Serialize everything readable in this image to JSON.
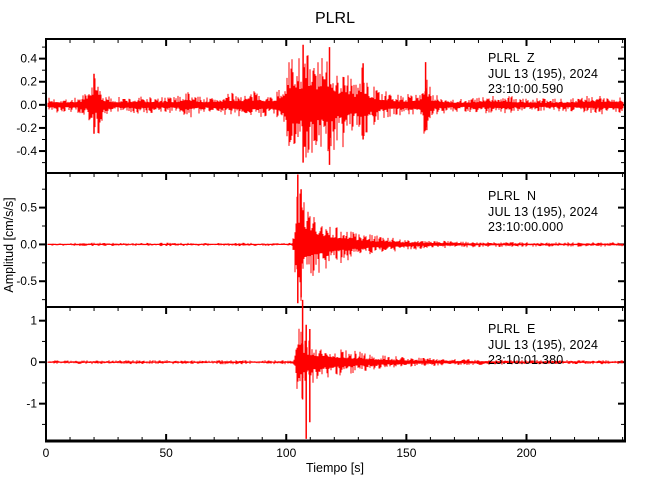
{
  "title": "PLRL",
  "chart_data": {
    "type": "line",
    "subtype": "seismogram-3-component",
    "title": "PLRL",
    "xlabel": "Tiempo [s]",
    "ylabel": "Amplitud [cm/s/s]",
    "trace_color": "#ff0000",
    "axis_color": "#000000",
    "background": "#ffffff",
    "grid": false,
    "x": {
      "lim": [
        0,
        241
      ],
      "major_ticks": [
        0,
        50,
        100,
        150,
        200
      ],
      "tick_labels": [
        "0",
        "50",
        "100",
        "150",
        "200"
      ],
      "minor_step": 10
    },
    "panels": [
      {
        "name": "PLRL-Z",
        "station": "PLRL",
        "component": "Z",
        "label_lines": [
          "PLRL  Z",
          "JUL 13 (195), 2024",
          "23:10:00.590"
        ],
        "ylim": [
          -0.59,
          0.57
        ],
        "major_ticks": [
          0.4,
          0.2,
          0.0,
          -0.2,
          -0.4
        ],
        "tick_labels": [
          "0.4",
          "0.2",
          "0.0",
          "-0.2",
          "-0.4"
        ],
        "minor_step": 0.1,
        "noise_seed": 7,
        "envelope": [
          [
            0,
            0.06
          ],
          [
            4,
            0.07
          ],
          [
            8,
            0.06
          ],
          [
            12,
            0.07
          ],
          [
            16,
            0.09
          ],
          [
            18,
            0.14
          ],
          [
            19,
            0.22
          ],
          [
            20,
            0.27
          ],
          [
            21,
            0.22
          ],
          [
            22,
            0.26
          ],
          [
            23,
            0.15
          ],
          [
            25,
            0.08
          ],
          [
            30,
            0.07
          ],
          [
            35,
            0.07
          ],
          [
            40,
            0.08
          ],
          [
            45,
            0.07
          ],
          [
            50,
            0.07
          ],
          [
            55,
            0.08
          ],
          [
            57,
            0.12
          ],
          [
            59,
            0.13
          ],
          [
            61,
            0.1
          ],
          [
            64,
            0.08
          ],
          [
            68,
            0.07
          ],
          [
            72,
            0.08
          ],
          [
            76,
            0.1
          ],
          [
            80,
            0.11
          ],
          [
            84,
            0.1
          ],
          [
            88,
            0.13
          ],
          [
            90,
            0.11
          ],
          [
            93,
            0.09
          ],
          [
            96,
            0.12
          ],
          [
            98,
            0.2
          ],
          [
            100,
            0.32
          ],
          [
            102,
            0.42
          ],
          [
            104,
            0.5
          ],
          [
            106,
            0.45
          ],
          [
            108,
            0.52
          ],
          [
            110,
            0.42
          ],
          [
            112,
            0.48
          ],
          [
            114,
            0.38
          ],
          [
            116,
            0.45
          ],
          [
            118,
            0.52
          ],
          [
            120,
            0.4
          ],
          [
            122,
            0.3
          ],
          [
            124,
            0.42
          ],
          [
            126,
            0.28
          ],
          [
            128,
            0.22
          ],
          [
            130,
            0.25
          ],
          [
            132,
            0.38
          ],
          [
            134,
            0.22
          ],
          [
            136,
            0.18
          ],
          [
            138,
            0.15
          ],
          [
            140,
            0.13
          ],
          [
            143,
            0.11
          ],
          [
            146,
            0.1
          ],
          [
            150,
            0.09
          ],
          [
            153,
            0.11
          ],
          [
            156,
            0.13
          ],
          [
            158,
            0.36
          ],
          [
            159,
            0.2
          ],
          [
            161,
            0.1
          ],
          [
            165,
            0.08
          ],
          [
            170,
            0.06
          ],
          [
            175,
            0.06
          ],
          [
            180,
            0.07
          ],
          [
            185,
            0.08
          ],
          [
            190,
            0.09
          ],
          [
            195,
            0.07
          ],
          [
            200,
            0.06
          ],
          [
            205,
            0.06
          ],
          [
            210,
            0.05
          ],
          [
            215,
            0.06
          ],
          [
            220,
            0.07
          ],
          [
            225,
            0.08
          ],
          [
            230,
            0.08
          ],
          [
            235,
            0.09
          ],
          [
            238,
            0.08
          ],
          [
            241,
            0.07
          ]
        ],
        "spikes": [
          [
            20,
            0.27,
            -0.25
          ],
          [
            107,
            0.52,
            -0.5
          ],
          [
            118,
            0.5,
            -0.52
          ],
          [
            132,
            0.36,
            -0.3
          ],
          [
            158,
            0.37,
            -0.22
          ]
        ]
      },
      {
        "name": "PLRL-N",
        "station": "PLRL",
        "component": "N",
        "label_lines": [
          "PLRL  N",
          "JUL 13 (195), 2024",
          "23:10:00.000"
        ],
        "ylim": [
          -0.85,
          0.97
        ],
        "major_ticks": [
          0.5,
          0.0,
          -0.5
        ],
        "tick_labels": [
          "0.5",
          "0.0",
          "-0.5"
        ],
        "minor_step": 0.25,
        "noise_seed": 13,
        "envelope": [
          [
            0,
            0.02
          ],
          [
            10,
            0.02
          ],
          [
            20,
            0.025
          ],
          [
            30,
            0.02
          ],
          [
            40,
            0.02
          ],
          [
            50,
            0.025
          ],
          [
            60,
            0.02
          ],
          [
            70,
            0.02
          ],
          [
            80,
            0.025
          ],
          [
            90,
            0.02
          ],
          [
            100,
            0.02
          ],
          [
            102,
            0.025
          ],
          [
            103,
            0.1
          ],
          [
            104,
            0.75
          ],
          [
            105,
            0.95
          ],
          [
            106,
            0.8
          ],
          [
            107,
            0.65
          ],
          [
            108,
            0.55
          ],
          [
            110,
            0.5
          ],
          [
            112,
            0.44
          ],
          [
            114,
            0.4
          ],
          [
            116,
            0.36
          ],
          [
            118,
            0.32
          ],
          [
            120,
            0.29
          ],
          [
            123,
            0.25
          ],
          [
            126,
            0.22
          ],
          [
            129,
            0.19
          ],
          [
            132,
            0.16
          ],
          [
            135,
            0.14
          ],
          [
            138,
            0.12
          ],
          [
            141,
            0.11
          ],
          [
            144,
            0.1
          ],
          [
            147,
            0.09
          ],
          [
            150,
            0.08
          ],
          [
            154,
            0.07
          ],
          [
            158,
            0.06
          ],
          [
            162,
            0.055
          ],
          [
            166,
            0.05
          ],
          [
            170,
            0.045
          ],
          [
            176,
            0.04
          ],
          [
            182,
            0.038
          ],
          [
            190,
            0.035
          ],
          [
            200,
            0.032
          ],
          [
            210,
            0.03
          ],
          [
            220,
            0.03
          ],
          [
            230,
            0.03
          ],
          [
            241,
            0.03
          ]
        ],
        "spikes": [
          [
            104.8,
            0.95,
            -0.8
          ],
          [
            106.2,
            0.75,
            -0.72
          ]
        ]
      },
      {
        "name": "PLRL-E",
        "station": "PLRL",
        "component": "E",
        "label_lines": [
          "PLRL  E",
          "JUL 13 (195), 2024",
          "23:10:01.380"
        ],
        "ylim": [
          -1.9,
          1.33
        ],
        "major_ticks": [
          1,
          0,
          -1
        ],
        "tick_labels": [
          "1",
          "0",
          "-1"
        ],
        "minor_step": 0.5,
        "noise_seed": 29,
        "envelope": [
          [
            0,
            0.045
          ],
          [
            10,
            0.05
          ],
          [
            20,
            0.045
          ],
          [
            30,
            0.05
          ],
          [
            40,
            0.045
          ],
          [
            50,
            0.05
          ],
          [
            60,
            0.045
          ],
          [
            70,
            0.05
          ],
          [
            80,
            0.05
          ],
          [
            90,
            0.045
          ],
          [
            100,
            0.05
          ],
          [
            103,
            0.06
          ],
          [
            104,
            0.4
          ],
          [
            105,
            1.3
          ],
          [
            106,
            1.0
          ],
          [
            107,
            0.8
          ],
          [
            108,
            0.65
          ],
          [
            110,
            0.55
          ],
          [
            112,
            0.5
          ],
          [
            114,
            0.45
          ],
          [
            116,
            0.42
          ],
          [
            118,
            0.4
          ],
          [
            120,
            0.37
          ],
          [
            123,
            0.33
          ],
          [
            126,
            0.3
          ],
          [
            129,
            0.27
          ],
          [
            132,
            0.24
          ],
          [
            135,
            0.21
          ],
          [
            138,
            0.19
          ],
          [
            141,
            0.17
          ],
          [
            144,
            0.15
          ],
          [
            147,
            0.14
          ],
          [
            150,
            0.12
          ],
          [
            155,
            0.11
          ],
          [
            160,
            0.1
          ],
          [
            165,
            0.09
          ],
          [
            170,
            0.08
          ],
          [
            176,
            0.07
          ],
          [
            182,
            0.065
          ],
          [
            190,
            0.06
          ],
          [
            200,
            0.055
          ],
          [
            210,
            0.05
          ],
          [
            220,
            0.05
          ],
          [
            230,
            0.05
          ],
          [
            241,
            0.05
          ]
        ],
        "spikes": [
          [
            106.8,
            1.5,
            -0.9
          ],
          [
            108.3,
            0.9,
            -1.85
          ],
          [
            109.8,
            0.8,
            -1.45
          ]
        ]
      }
    ]
  }
}
